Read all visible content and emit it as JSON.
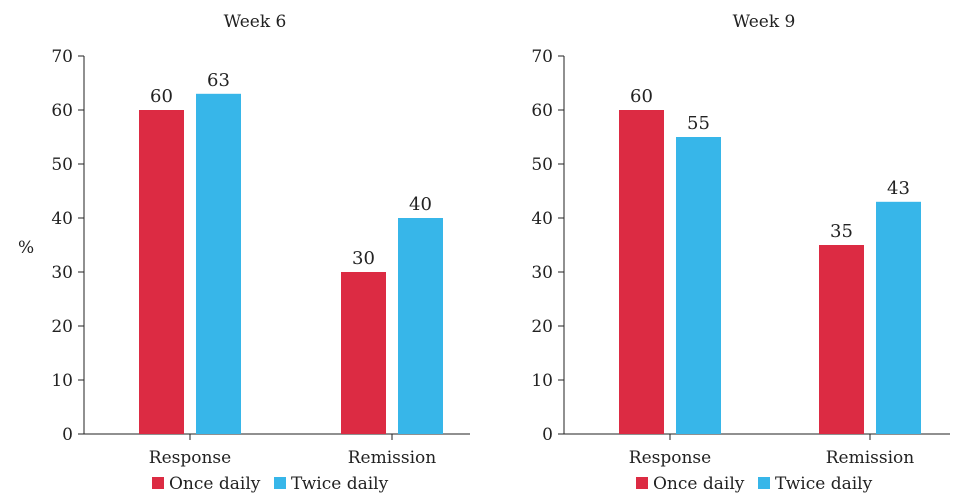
{
  "y_axis_label": "%",
  "colors": {
    "once": "#dc2b43",
    "twice": "#37b6e9"
  },
  "chart_data": [
    {
      "type": "bar",
      "title": "Week 6",
      "categories": [
        "Response",
        "Remission"
      ],
      "series": [
        {
          "name": "Once daily",
          "color": "#dc2b43",
          "values": [
            60,
            30
          ]
        },
        {
          "name": "Twice daily",
          "color": "#37b6e9",
          "values": [
            63,
            40
          ]
        }
      ],
      "data_labels": [
        [
          "60",
          "30"
        ],
        [
          "63",
          "40"
        ]
      ],
      "ylabel": "%",
      "ylim": [
        0,
        70
      ],
      "yticks": [
        "0",
        "10",
        "20",
        "30",
        "40",
        "50",
        "60",
        "70"
      ],
      "legend": "bottom"
    },
    {
      "type": "bar",
      "title": "Week 9",
      "categories": [
        "Response",
        "Remission"
      ],
      "series": [
        {
          "name": "Once daily",
          "color": "#dc2b43",
          "values": [
            60,
            35
          ]
        },
        {
          "name": "Twice daily",
          "color": "#37b6e9",
          "values": [
            55,
            43
          ]
        }
      ],
      "data_labels": [
        [
          "60",
          "35"
        ],
        [
          "55",
          "43"
        ]
      ],
      "ylabel": "",
      "ylim": [
        0,
        70
      ],
      "yticks": [
        "0",
        "10",
        "20",
        "30",
        "40",
        "50",
        "60",
        "70"
      ],
      "legend": "bottom"
    }
  ]
}
